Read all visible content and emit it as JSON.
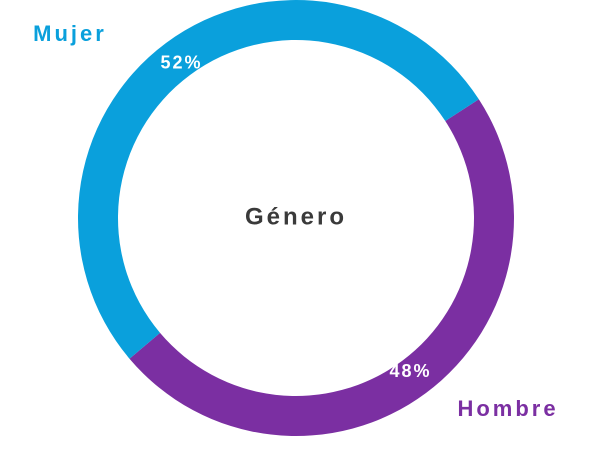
{
  "chart_data": {
    "type": "pie",
    "title": "Género",
    "categories": [
      "Mujer",
      "Hombre"
    ],
    "values": [
      52,
      48
    ],
    "value_labels": [
      "52%",
      "48%"
    ],
    "colors": [
      "#0aa0dc",
      "#7b2fa2"
    ]
  }
}
